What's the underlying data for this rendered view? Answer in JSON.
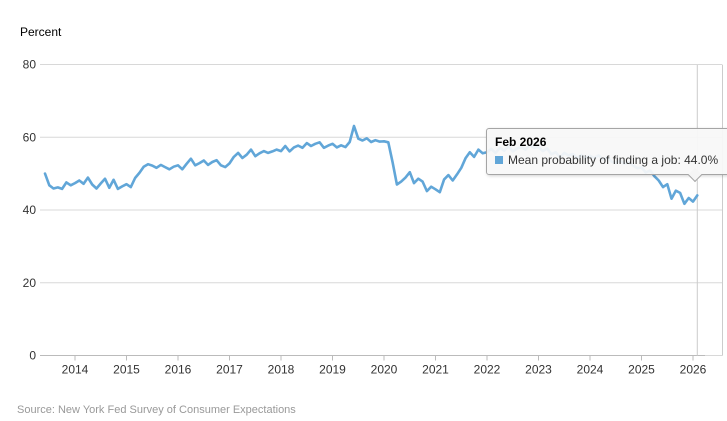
{
  "y_axis_title": "Percent",
  "source": "Source: New York Fed Survey of Consumer Expectations",
  "tooltip": {
    "title": "Feb 2026",
    "series_label": "Mean probability of finding a job",
    "value_text": "Mean probability of finding a job: 44.0%",
    "marker_color": "#61a6d8"
  },
  "colors": {
    "line": "#61a6d8",
    "grid": "#d8d8d8",
    "axis": "#bbbbbb",
    "tick": "#bbbbbb",
    "crosshair": "#cccccc",
    "right_border": "#cccccc",
    "axis_label": "#333333"
  },
  "chart_data": {
    "type": "line",
    "title": "",
    "ylabel": "Percent",
    "xlabel": "",
    "ylim": [
      0,
      80
    ],
    "yticks": [
      0,
      20,
      40,
      60,
      80
    ],
    "xticks": [
      2014,
      2015,
      2016,
      2017,
      2018,
      2019,
      2020,
      2021,
      2022,
      2023,
      2024,
      2025,
      2026
    ],
    "grid": true,
    "legend_position": "none",
    "frequency": "monthly",
    "x_start": "2013-06",
    "x_end": "2026-02",
    "highlight_point": {
      "label": "Feb 2026",
      "value": 44.0
    },
    "series": [
      {
        "name": "Mean probability of finding a job",
        "values": [
          50.0,
          46.8,
          45.9,
          46.2,
          45.8,
          47.6,
          46.8,
          47.4,
          48.1,
          47.2,
          48.9,
          47.0,
          45.9,
          47.3,
          48.6,
          46.1,
          48.3,
          45.8,
          46.5,
          47.1,
          46.3,
          48.8,
          50.2,
          51.9,
          52.6,
          52.2,
          51.6,
          52.4,
          51.8,
          51.2,
          51.9,
          52.3,
          51.2,
          52.7,
          54.1,
          52.3,
          52.9,
          53.6,
          52.4,
          53.2,
          53.7,
          52.3,
          51.8,
          52.8,
          54.6,
          55.7,
          54.3,
          55.2,
          56.6,
          54.8,
          55.6,
          56.2,
          55.7,
          56.1,
          56.6,
          56.2,
          57.6,
          56.1,
          57.2,
          57.7,
          57.1,
          58.4,
          57.6,
          58.2,
          58.6,
          57.1,
          57.7,
          58.2,
          57.2,
          57.8,
          57.3,
          58.7,
          63.1,
          59.6,
          59.1,
          59.7,
          58.7,
          59.2,
          58.8,
          58.9,
          58.6,
          53.1,
          47.0,
          47.8,
          48.9,
          50.4,
          47.4,
          48.6,
          47.8,
          45.2,
          46.4,
          45.7,
          44.9,
          48.4,
          49.6,
          48.1,
          49.8,
          51.6,
          54.2,
          55.9,
          54.6,
          56.6,
          55.6,
          55.9,
          56.8,
          55.7,
          57.1,
          56.3,
          57.6,
          56.1,
          56.9,
          57.3,
          56.6,
          57.9,
          57.1,
          57.3,
          56.2,
          56.9,
          55.3,
          55.9,
          54.5,
          55.7,
          55.0,
          55.4,
          54.3,
          55.1,
          54.4,
          54.9,
          54.3,
          55.0,
          53.9,
          54.5,
          53.3,
          52.9,
          53.6,
          52.7,
          53.1,
          52.3,
          51.5,
          51.7,
          50.3,
          50.9,
          49.3,
          48.1,
          46.3,
          47.1,
          43.1,
          45.3,
          44.7,
          41.7,
          43.3,
          42.3,
          44.0
        ]
      }
    ]
  }
}
